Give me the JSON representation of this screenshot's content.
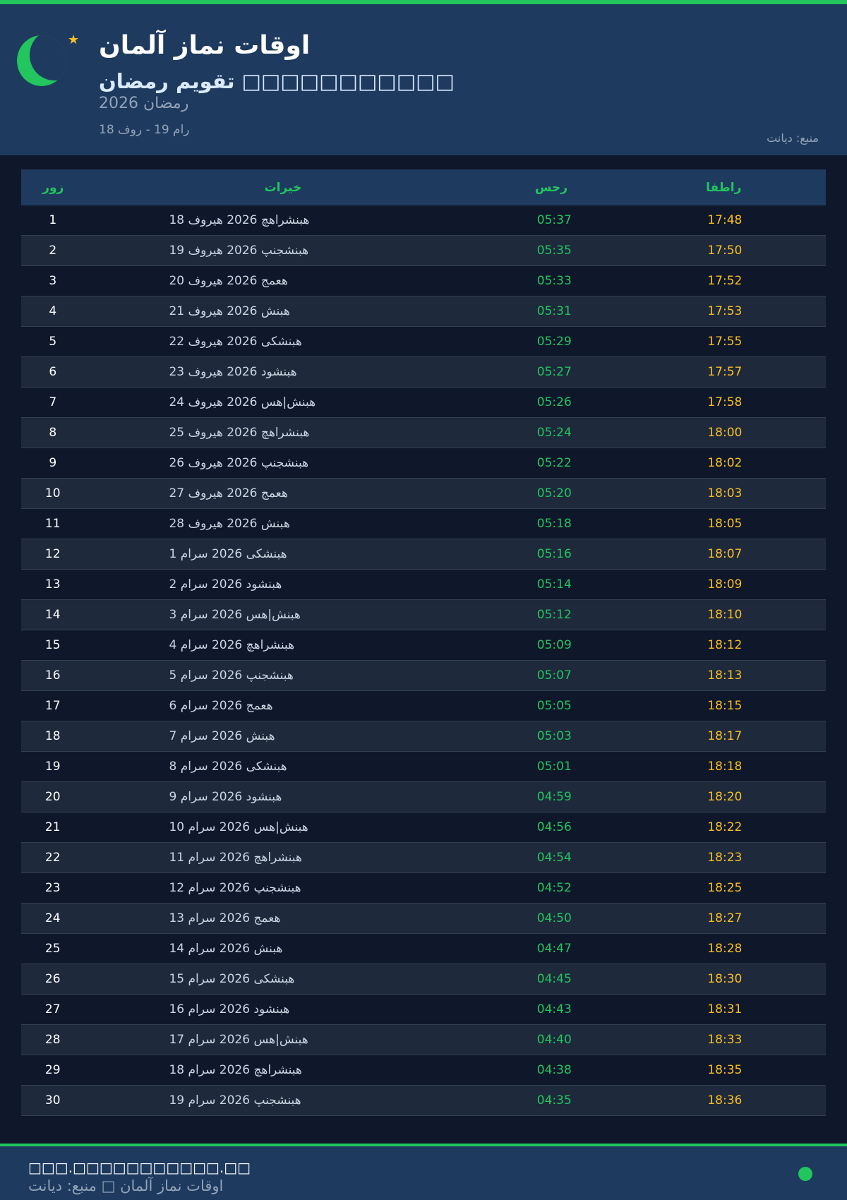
{
  "header": {
    "title": "اوقات نماز آلمان",
    "subtitle": "□□□□□□□□□□□ تقویم رمضان",
    "year_line": "رمضان 2026",
    "range": "18 فور - 19 مار",
    "source": "منبع: دیانت"
  },
  "table": {
    "headers": {
      "day": "روز",
      "date": "تاریخ",
      "fajr": "سحر",
      "iftar": "افطار"
    },
    "rows": [
      [
        "1",
        "18 فوریه 2026 چهارشنبه",
        "05:37",
        "17:48"
      ],
      [
        "2",
        "19 فوریه 2026 پنجشنبه",
        "05:35",
        "17:50"
      ],
      [
        "3",
        "20 فوریه 2026 جمعه",
        "05:33",
        "17:52"
      ],
      [
        "4",
        "21 فوریه 2026 شنبه",
        "05:31",
        "17:53"
      ],
      [
        "5",
        "22 فوریه 2026 یکشنبه",
        "05:29",
        "17:55"
      ],
      [
        "6",
        "23 فوریه 2026 دوشنبه",
        "05:27",
        "17:57"
      ],
      [
        "7",
        "24 فوریه 2026 سه|شنبه",
        "05:26",
        "17:58"
      ],
      [
        "8",
        "25 فوریه 2026 چهارشنبه",
        "05:24",
        "18:00"
      ],
      [
        "9",
        "26 فوریه 2026 پنجشنبه",
        "05:22",
        "18:02"
      ],
      [
        "10",
        "27 فوریه 2026 جمعه",
        "05:20",
        "18:03"
      ],
      [
        "11",
        "28 فوریه 2026 شنبه",
        "05:18",
        "18:05"
      ],
      [
        "12",
        "1 مارس 2026 یکشنبه",
        "05:16",
        "18:07"
      ],
      [
        "13",
        "2 مارس 2026 دوشنبه",
        "05:14",
        "18:09"
      ],
      [
        "14",
        "3 مارس 2026 سه|شنبه",
        "05:12",
        "18:10"
      ],
      [
        "15",
        "4 مارس 2026 چهارشنبه",
        "05:09",
        "18:12"
      ],
      [
        "16",
        "5 مارس 2026 پنجشنبه",
        "05:07",
        "18:13"
      ],
      [
        "17",
        "6 مارس 2026 جمعه",
        "05:05",
        "18:15"
      ],
      [
        "18",
        "7 مارس 2026 شنبه",
        "05:03",
        "18:17"
      ],
      [
        "19",
        "8 مارس 2026 یکشنبه",
        "05:01",
        "18:18"
      ],
      [
        "20",
        "9 مارس 2026 دوشنبه",
        "04:59",
        "18:20"
      ],
      [
        "21",
        "10 مارس 2026 سه|شنبه",
        "04:56",
        "18:22"
      ],
      [
        "22",
        "11 مارس 2026 چهارشنبه",
        "04:54",
        "18:23"
      ],
      [
        "23",
        "12 مارس 2026 پنجشنبه",
        "04:52",
        "18:25"
      ],
      [
        "24",
        "13 مارس 2026 جمعه",
        "04:50",
        "18:27"
      ],
      [
        "25",
        "14 مارس 2026 شنبه",
        "04:47",
        "18:28"
      ],
      [
        "26",
        "15 مارس 2026 یکشنبه",
        "04:45",
        "18:30"
      ],
      [
        "27",
        "16 مارس 2026 دوشنبه",
        "04:43",
        "18:31"
      ],
      [
        "28",
        "17 مارس 2026 سه|شنبه",
        "04:40",
        "18:33"
      ],
      [
        "29",
        "18 مارس 2026 چهارشنبه",
        "04:38",
        "18:35"
      ],
      [
        "30",
        "19 مارس 2026 پنجشنبه",
        "04:35",
        "18:36"
      ]
    ]
  },
  "footer": {
    "url": "□□□.□□□□□□□□□□□.□□",
    "caption": "اوقات نماز آلمان □ منبع: دیانت"
  },
  "colors": {
    "accent": "#22c55e",
    "iftar": "#fbbf24",
    "header_bg": "#1e3a5f",
    "page_bg": "#0f172a"
  },
  "icons": {
    "logo": "crescent-moon-icon",
    "star": "star-icon",
    "status": "status-dot-icon"
  }
}
